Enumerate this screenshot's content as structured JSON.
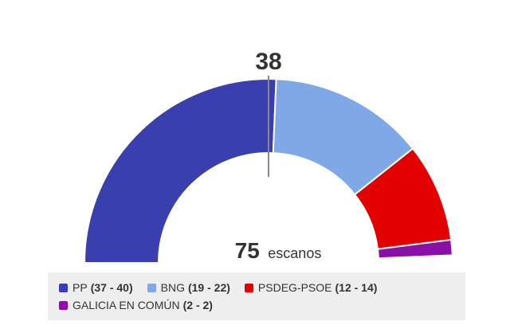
{
  "majority_label": "38",
  "total": {
    "value": "75",
    "unit": "escanos"
  },
  "colors": {
    "PP": "#3a3fb0",
    "BNG": "#7ea8e6",
    "PSDEG-PSOE": "#e20000",
    "GALICIA EN COMÚN": "#8a0fa8"
  },
  "chart_data": {
    "type": "pie",
    "subtype": "semicircle-parliament",
    "total_seats": 75,
    "majority": 38,
    "series": [
      {
        "name": "PP",
        "range": "37 - 40",
        "value": 38.5,
        "color": "#3a3fb0"
      },
      {
        "name": "BNG",
        "range": "19 - 22",
        "value": 20.5,
        "color": "#7ea8e6"
      },
      {
        "name": "PSDEG-PSOE",
        "range": "12 - 14",
        "value": 13,
        "color": "#e20000"
      },
      {
        "name": "GALICIA EN COMÚN",
        "range": "2 - 2",
        "value": 2,
        "color": "#8a0fa8"
      }
    ]
  },
  "legend": {
    "items": [
      {
        "name": "PP",
        "range": "37 - 40"
      },
      {
        "name": "BNG",
        "range": "19 - 22"
      },
      {
        "name": "PSDEG-PSOE",
        "range": "12 - 14"
      },
      {
        "name": "GALICIA EN COMÚN",
        "range": "2 - 2"
      }
    ]
  }
}
